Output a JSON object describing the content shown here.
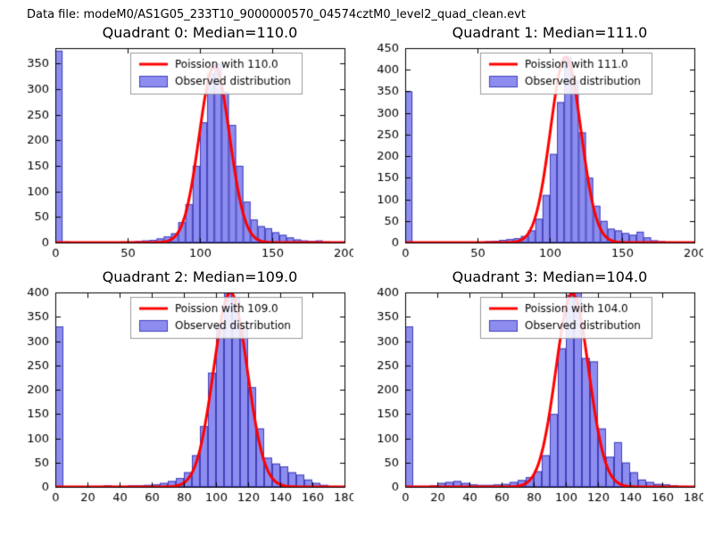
{
  "figure": {
    "title": "Data file: modeM0/AS1G05_233T10_9000000570_04574cztM0_level2_quad_clean.evt"
  },
  "colors": {
    "curve": "#ff0000",
    "bar_fill": "#8d8df0",
    "bar_edge": "#4040b8",
    "legend_edge": "#999999",
    "text": "#000000",
    "background": "#ffffff"
  },
  "chart_data": [
    {
      "type": "bar",
      "title": "Quadrant 0: Median=110.0",
      "legend": [
        "Poission with 110.0",
        "Observed distribution"
      ],
      "xlabel": "",
      "ylabel": "",
      "xlim": [
        0,
        200
      ],
      "ylim": [
        0,
        380
      ],
      "xticks": [
        0,
        50,
        100,
        150,
        200
      ],
      "yticks": [
        0,
        50,
        100,
        150,
        200,
        250,
        300,
        350
      ],
      "bin_start": 0,
      "bin_width": 5,
      "bins": [
        375,
        2,
        0,
        0,
        0,
        0,
        0,
        0,
        0,
        2,
        2,
        3,
        4,
        5,
        8,
        12,
        18,
        40,
        75,
        150,
        235,
        330,
        350,
        295,
        230,
        150,
        80,
        45,
        32,
        28,
        20,
        15,
        10,
        6,
        4,
        3,
        4,
        2,
        0,
        0
      ],
      "curve": {
        "mu": 110.0,
        "amp": 345
      }
    },
    {
      "type": "bar",
      "title": "Quadrant 1: Median=111.0",
      "legend": [
        "Poission with 111.0",
        "Observed distribution"
      ],
      "xlabel": "",
      "ylabel": "",
      "xlim": [
        0,
        200
      ],
      "ylim": [
        0,
        450
      ],
      "xticks": [
        0,
        50,
        100,
        150,
        200
      ],
      "yticks": [
        0,
        50,
        100,
        150,
        200,
        250,
        300,
        350,
        400,
        450
      ],
      "bin_start": 0,
      "bin_width": 5,
      "bins": [
        350,
        2,
        0,
        0,
        0,
        0,
        0,
        0,
        0,
        2,
        2,
        3,
        4,
        6,
        8,
        10,
        15,
        28,
        55,
        110,
        205,
        325,
        430,
        375,
        255,
        150,
        85,
        50,
        32,
        28,
        22,
        18,
        25,
        12,
        5,
        3,
        2,
        0,
        0,
        0
      ],
      "curve": {
        "mu": 111.0,
        "amp": 430
      }
    },
    {
      "type": "bar",
      "title": "Quadrant 2: Median=109.0",
      "legend": [
        "Poission with 109.0",
        "Observed distribution"
      ],
      "xlabel": "",
      "ylabel": "",
      "xlim": [
        0,
        180
      ],
      "ylim": [
        0,
        400
      ],
      "xticks": [
        0,
        20,
        40,
        60,
        80,
        100,
        120,
        140,
        160,
        180
      ],
      "yticks": [
        0,
        50,
        100,
        150,
        200,
        250,
        300,
        350,
        400
      ],
      "bin_start": 0,
      "bin_width": 5,
      "bins": [
        330,
        0,
        0,
        0,
        2,
        2,
        3,
        2,
        2,
        3,
        3,
        4,
        5,
        8,
        12,
        18,
        30,
        65,
        125,
        235,
        330,
        400,
        390,
        330,
        205,
        120,
        60,
        48,
        42,
        30,
        25,
        15,
        8,
        4,
        2,
        1
      ],
      "curve": {
        "mu": 109.0,
        "amp": 400
      }
    },
    {
      "type": "bar",
      "title": "Quadrant 3: Median=104.0",
      "legend": [
        "Poission with 104.0",
        "Observed distribution"
      ],
      "xlabel": "",
      "ylabel": "",
      "xlim": [
        0,
        180
      ],
      "ylim": [
        0,
        400
      ],
      "xticks": [
        0,
        20,
        40,
        60,
        80,
        100,
        120,
        140,
        160,
        180
      ],
      "yticks": [
        0,
        50,
        100,
        150,
        200,
        250,
        300,
        350,
        400
      ],
      "bin_start": 0,
      "bin_width": 5,
      "bins": [
        330,
        2,
        2,
        3,
        8,
        10,
        12,
        8,
        5,
        4,
        4,
        5,
        6,
        10,
        14,
        20,
        32,
        65,
        150,
        285,
        395,
        400,
        265,
        258,
        120,
        62,
        92,
        50,
        30,
        15,
        10,
        6,
        5,
        3,
        2,
        1
      ],
      "curve": {
        "mu": 104.0,
        "amp": 398
      }
    }
  ]
}
